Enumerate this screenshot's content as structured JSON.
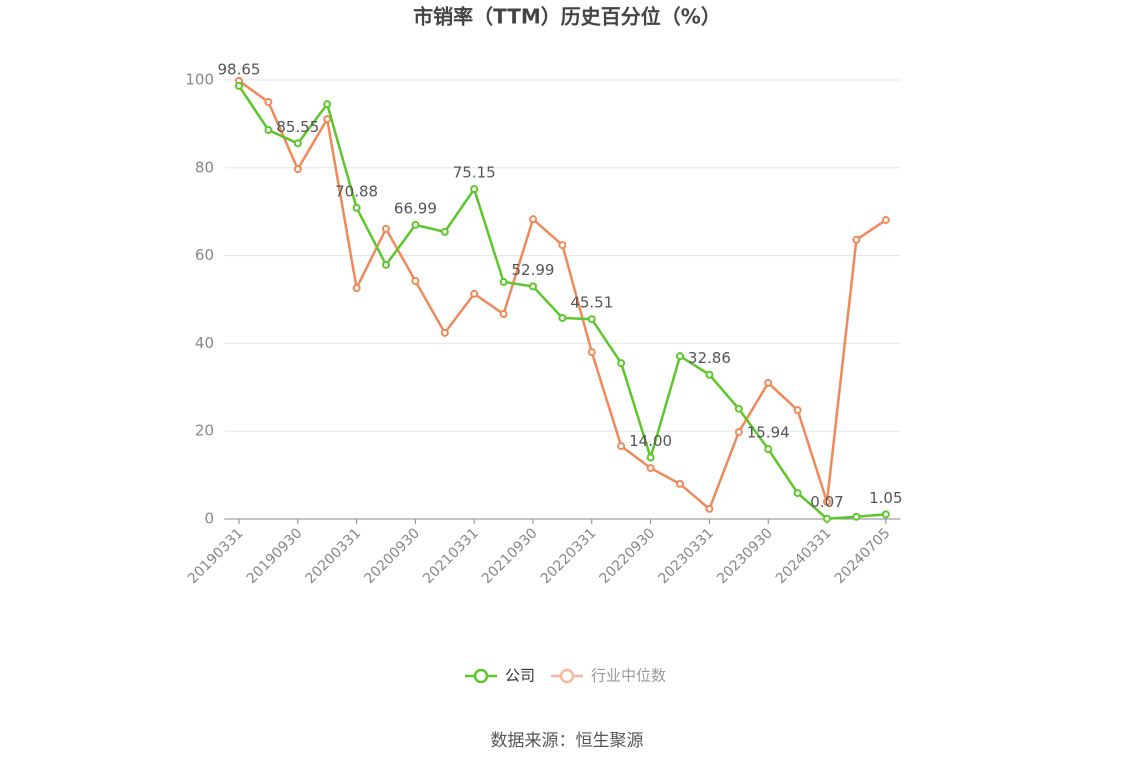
{
  "chart_data": {
    "type": "line",
    "title": "市销率（TTM）历史百分位（%）",
    "source": "数据来源：恒生聚源",
    "categories": [
      "20190331",
      null,
      "20190930",
      null,
      "20200331",
      null,
      "20200930",
      null,
      "20210331",
      null,
      "20210930",
      null,
      "20220331",
      null,
      "20220930",
      null,
      "20230331",
      null,
      "20230930",
      null,
      "20240331",
      null,
      "20240705"
    ],
    "series": [
      {
        "name": "公司",
        "color": "#5cc72b",
        "values": [
          98.65,
          88.6,
          85.55,
          94.5,
          70.88,
          57.9,
          66.99,
          65.4,
          75.15,
          54.0,
          52.99,
          45.8,
          45.51,
          35.5,
          14.0,
          37.1,
          32.86,
          25.1,
          15.94,
          5.9,
          0.07,
          0.5,
          1.05
        ],
        "value_labels": [
          "98.65",
          null,
          "85.55",
          null,
          "70.88",
          null,
          "66.99",
          null,
          "75.15",
          null,
          "52.99",
          null,
          "45.51",
          null,
          "14.00",
          null,
          "32.86",
          null,
          "15.94",
          null,
          "0.07",
          null,
          "1.05"
        ]
      },
      {
        "name": "行业中位数",
        "color": "#f0895a",
        "values": [
          99.8,
          95.0,
          79.7,
          91.1,
          52.6,
          66.1,
          54.2,
          42.4,
          51.3,
          46.7,
          68.3,
          62.4,
          38.0,
          16.6,
          11.6,
          8.0,
          2.3,
          19.8,
          31.0,
          24.8,
          3.9,
          63.6,
          68.1
        ]
      }
    ],
    "ylim": [
      0,
      100
    ],
    "yticks": [
      0,
      20,
      40,
      60,
      80,
      100
    ],
    "grid": true
  }
}
